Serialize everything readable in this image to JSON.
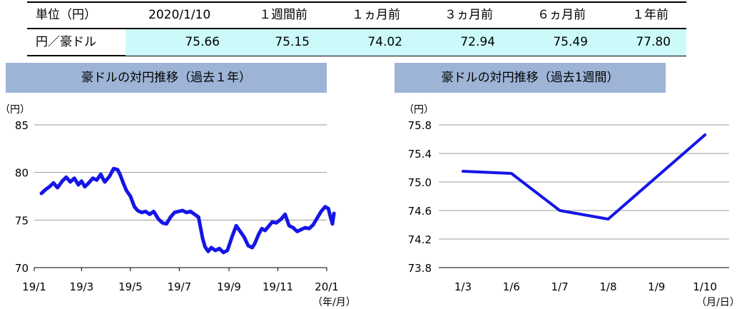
{
  "table": {
    "headers": [
      "単位（円）",
      "2020/1/10",
      "１週間前",
      "１ヵ月前",
      "３ヵ月前",
      "６ヵ月前",
      "１年前"
    ],
    "row": {
      "label": "円／豪ドル",
      "values": [
        "75.66",
        "75.15",
        "74.02",
        "72.94",
        "75.49",
        "77.80"
      ]
    }
  },
  "chart_data": [
    {
      "type": "line",
      "title": "豪ドルの対円推移（過去１年）",
      "ylabel": "（円）",
      "xlabel": "（年/月）",
      "ylim": [
        70,
        85
      ],
      "yticks": [
        "85",
        "80",
        "75",
        "70"
      ],
      "xticks": [
        "19/1",
        "19/3",
        "19/5",
        "19/7",
        "19/9",
        "19/11",
        "20/1"
      ],
      "grid": true,
      "color": "#1515e6",
      "series": [
        {
          "x": [
            "2019-01-10",
            "2019-01-15",
            "2019-01-20",
            "2019-01-25",
            "2019-01-30",
            "2019-02-05",
            "2019-02-10",
            "2019-02-15",
            "2019-02-20",
            "2019-02-25",
            "2019-03-01",
            "2019-03-05",
            "2019-03-10",
            "2019-03-15",
            "2019-03-20",
            "2019-03-25",
            "2019-03-30",
            "2019-04-05",
            "2019-04-10",
            "2019-04-15",
            "2019-04-18",
            "2019-04-22",
            "2019-04-26",
            "2019-05-01",
            "2019-05-06",
            "2019-05-10",
            "2019-05-15",
            "2019-05-20",
            "2019-05-25",
            "2019-05-30",
            "2019-06-05",
            "2019-06-10",
            "2019-06-15",
            "2019-06-20",
            "2019-06-25",
            "2019-06-30",
            "2019-07-05",
            "2019-07-10",
            "2019-07-15",
            "2019-07-20",
            "2019-07-25",
            "2019-07-30",
            "2019-08-02",
            "2019-08-06",
            "2019-08-10",
            "2019-08-15",
            "2019-08-20",
            "2019-08-25",
            "2019-08-30",
            "2019-09-05",
            "2019-09-10",
            "2019-09-15",
            "2019-09-20",
            "2019-09-25",
            "2019-09-30",
            "2019-10-03",
            "2019-10-08",
            "2019-10-12",
            "2019-10-16",
            "2019-10-20",
            "2019-10-25",
            "2019-10-30",
            "2019-11-05",
            "2019-11-10",
            "2019-11-15",
            "2019-11-20",
            "2019-11-25",
            "2019-11-30",
            "2019-12-05",
            "2019-12-10",
            "2019-12-15",
            "2019-12-20",
            "2019-12-25",
            "2019-12-30",
            "2020-01-03",
            "2020-01-06",
            "2020-01-08",
            "2020-01-10"
          ],
          "values": [
            77.8,
            78.2,
            78.5,
            78.9,
            78.4,
            79.1,
            79.5,
            79.0,
            79.4,
            78.7,
            79.1,
            78.5,
            78.9,
            79.4,
            79.2,
            79.8,
            79.0,
            79.6,
            80.4,
            80.3,
            79.8,
            78.9,
            78.1,
            77.5,
            76.4,
            76.0,
            75.8,
            75.9,
            75.6,
            75.9,
            75.1,
            74.7,
            74.6,
            75.3,
            75.8,
            75.9,
            76.0,
            75.8,
            75.9,
            75.6,
            75.3,
            73.1,
            72.2,
            71.7,
            72.1,
            71.8,
            72.0,
            71.6,
            71.8,
            73.3,
            74.4,
            73.8,
            73.2,
            72.3,
            72.1,
            72.5,
            73.5,
            74.1,
            73.9,
            74.3,
            74.8,
            74.7,
            75.1,
            75.6,
            74.4,
            74.2,
            73.8,
            74.0,
            74.2,
            74.1,
            74.5,
            75.2,
            75.9,
            76.4,
            76.2,
            75.2,
            74.6,
            75.7
          ]
        }
      ]
    },
    {
      "type": "line",
      "title": "豪ドルの対円推移（過去1週間）",
      "ylabel": "（円）",
      "xlabel": "（月/日）",
      "ylim": [
        73.8,
        75.8
      ],
      "yticks": [
        "75.8",
        "75.4",
        "75.0",
        "74.6",
        "74.2",
        "73.8"
      ],
      "categories": [
        "1/3",
        "1/6",
        "1/7",
        "1/8",
        "1/9",
        "1/10"
      ],
      "grid": true,
      "color": "#1515e6",
      "series": [
        {
          "values": [
            75.15,
            75.12,
            74.6,
            74.48,
            null,
            75.66
          ]
        }
      ]
    }
  ]
}
